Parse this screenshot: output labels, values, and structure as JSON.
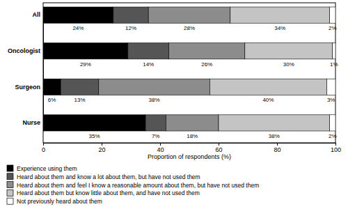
{
  "chart_data": {
    "type": "bar",
    "orientation": "horizontal",
    "stacked": true,
    "data_labels": true,
    "legend": "bottom",
    "x_label": "Proportion of respondents (%)",
    "categories": [
      "All",
      "Oncologist",
      "Surgeon",
      "Nurse"
    ],
    "xlim": [
      0,
      100
    ],
    "xticks": [
      0,
      20,
      40,
      60,
      80,
      100
    ],
    "series": [
      {
        "name": "Experience using them",
        "color": "#000000",
        "values": [
          24,
          29,
          6,
          35
        ],
        "value_labels": [
          "24%",
          "29%",
          "6%",
          "35%"
        ]
      },
      {
        "name": "Heard about them and know a lot about them, but have not used them",
        "color": "#555555",
        "values": [
          12,
          14,
          13,
          7
        ],
        "value_labels": [
          "12%",
          "14%",
          "13%",
          "7%"
        ]
      },
      {
        "name": "Heard about them and feel I know a reasonable amount about them, but have not used them",
        "color": "#8c8c8c",
        "values": [
          28,
          26,
          38,
          18
        ],
        "value_labels": [
          "28%",
          "26%",
          "38%",
          "18%"
        ]
      },
      {
        "name": "Heard about them but know little about them, and have not used them",
        "color": "#c4c4c4",
        "values": [
          34,
          30,
          40,
          38
        ],
        "value_labels": [
          "34%",
          "30%",
          "40%",
          "38%"
        ]
      },
      {
        "name": "Not previously heard about them",
        "color": "#ffffff",
        "values": [
          2,
          1,
          3,
          2
        ],
        "value_labels": [
          "2%",
          "1%",
          "3%",
          "2%"
        ]
      }
    ]
  }
}
